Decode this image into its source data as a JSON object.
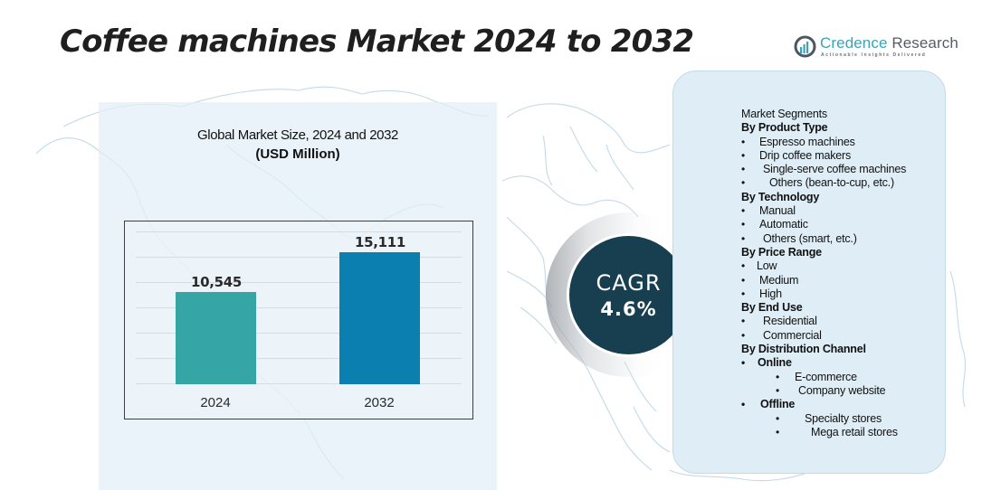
{
  "header": {
    "title": "Coffee machines Market 2024 to 2032"
  },
  "logo": {
    "name_part1": "Credence",
    "name_part2": " Research",
    "tagline": "Actionable Insights Delivered",
    "icon": "bar-chart-in-circle-icon",
    "accent_color": "#3aa3b8"
  },
  "chart_panel": {
    "title": "Global Market Size, 2024 and 2032",
    "unit": "(USD Million)"
  },
  "chart_data": {
    "type": "bar",
    "title": "Global Market Size, 2024 and 2032",
    "subtitle": "(USD Million)",
    "categories": [
      "2024",
      "2032"
    ],
    "values": [
      10545,
      15111
    ],
    "value_labels": [
      "10,545",
      "15,111"
    ],
    "colors": [
      "#35a6a5",
      "#0b7fb0"
    ],
    "xlabel": "",
    "ylabel": "USD Million",
    "grid": true,
    "legend": null
  },
  "cagr": {
    "label": "CAGR",
    "value": "4.6%",
    "color": "#173f50"
  },
  "segments": {
    "heading": "Market Segments",
    "lines": [
      {
        "text": "Market Segments",
        "type": "title"
      },
      {
        "text": "By Product Type",
        "type": "head"
      },
      {
        "text": "Espresso machines",
        "type": "item",
        "indent": 20
      },
      {
        "text": "Drip coffee makers",
        "type": "item",
        "indent": 20
      },
      {
        "text": "Single-serve coffee machines",
        "type": "item",
        "indent": 24
      },
      {
        "text": "Others (bean-to-cup, etc.)",
        "type": "item",
        "indent": 31
      },
      {
        "text": "By Technology",
        "type": "head"
      },
      {
        "text": "Manual",
        "type": "item",
        "indent": 20
      },
      {
        "text": "Automatic",
        "type": "item",
        "indent": 20
      },
      {
        "text": "Others (smart, etc.)",
        "type": "item",
        "indent": 24
      },
      {
        "text": "By Price Range",
        "type": "head"
      },
      {
        "text": "Low",
        "type": "item",
        "indent": 17
      },
      {
        "text": "Medium",
        "type": "item",
        "indent": 20
      },
      {
        "text": "High",
        "type": "item",
        "indent": 20
      },
      {
        "text": "By End Use",
        "type": "head"
      },
      {
        "text": "Residential",
        "type": "item",
        "indent": 24
      },
      {
        "text": "Commercial",
        "type": "item",
        "indent": 24
      },
      {
        "text": "By Distribution Channel",
        "type": "head"
      },
      {
        "text": "Online",
        "type": "subhead",
        "indent": 18
      },
      {
        "text": "E-commerce",
        "type": "subitem",
        "indent": 59,
        "dot": 38
      },
      {
        "text": "Company website",
        "type": "subitem",
        "indent": 63,
        "dot": 38
      },
      {
        "text": "Offline",
        "type": "subhead",
        "indent": 21
      },
      {
        "text": "Specialty stores",
        "type": "subitem",
        "indent": 70,
        "dot": 38
      },
      {
        "text": "Mega retail stores",
        "type": "subitem",
        "indent": 77,
        "dot": 38
      }
    ]
  }
}
